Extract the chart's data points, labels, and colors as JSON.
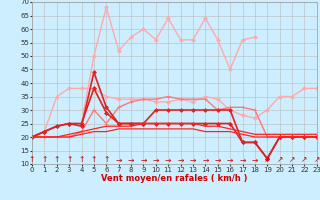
{
  "xlabel": "Vent moyen/en rafales ( km/h )",
  "bg_color": "#cceeff",
  "grid_color": "#bbbbbb",
  "x_ticks": [
    0,
    1,
    2,
    3,
    4,
    5,
    6,
    7,
    8,
    9,
    10,
    11,
    12,
    13,
    14,
    15,
    16,
    17,
    18,
    19,
    20,
    21,
    22,
    23
  ],
  "y_ticks": [
    10,
    15,
    20,
    25,
    30,
    35,
    40,
    45,
    50,
    55,
    60,
    65,
    70
  ],
  "ylim": [
    10,
    70
  ],
  "xlim": [
    0,
    23
  ],
  "series": [
    {
      "color": "#ffaaaa",
      "linewidth": 1.0,
      "marker": "D",
      "markersize": 2.0,
      "values": [
        20,
        22,
        35,
        38,
        38,
        38,
        35,
        34,
        34,
        34,
        33,
        33,
        34,
        33,
        35,
        34,
        30,
        28,
        27,
        30,
        35,
        35,
        38,
        38
      ]
    },
    {
      "color": "#ffaaaa",
      "linewidth": 1.0,
      "marker": "D",
      "markersize": 2.0,
      "values": [
        null,
        null,
        null,
        null,
        25,
        50,
        68,
        52,
        57,
        60,
        56,
        64,
        56,
        56,
        64,
        56,
        45,
        56,
        57,
        null,
        null,
        null,
        null,
        null
      ]
    },
    {
      "color": "#ff7777",
      "linewidth": 1.0,
      "marker": "+",
      "markersize": 3.0,
      "values": [
        20,
        20,
        20,
        20,
        22,
        30,
        25,
        31,
        33,
        34,
        34,
        35,
        34,
        34,
        34,
        30,
        31,
        31,
        30,
        20,
        20,
        20,
        20,
        20
      ]
    },
    {
      "color": "#dd2222",
      "linewidth": 1.2,
      "marker": "D",
      "markersize": 2.0,
      "values": [
        20,
        22,
        24,
        25,
        24,
        44,
        31,
        25,
        25,
        25,
        25,
        25,
        25,
        25,
        25,
        25,
        25,
        18,
        18,
        12,
        20,
        20,
        20,
        20
      ]
    },
    {
      "color": "#dd2222",
      "linewidth": 1.2,
      "marker": "D",
      "markersize": 2.0,
      "values": [
        20,
        22,
        24,
        25,
        25,
        38,
        29,
        25,
        25,
        25,
        30,
        30,
        30,
        30,
        30,
        30,
        30,
        18,
        18,
        12,
        20,
        20,
        20,
        20
      ]
    },
    {
      "color": "#ff2222",
      "linewidth": 0.9,
      "marker": null,
      "markersize": 0,
      "values": [
        20,
        20,
        20,
        21,
        22,
        23,
        24,
        24,
        24,
        25,
        25,
        25,
        25,
        25,
        24,
        24,
        23,
        22,
        21,
        21,
        21,
        21,
        21,
        21
      ]
    },
    {
      "color": "#ff2222",
      "linewidth": 0.9,
      "marker": null,
      "markersize": 0,
      "values": [
        20,
        20,
        20,
        20,
        21,
        22,
        22,
        23,
        23,
        23,
        23,
        23,
        23,
        23,
        22,
        22,
        22,
        21,
        20,
        20,
        20,
        20,
        20,
        20
      ]
    }
  ],
  "arrows": [
    "↑",
    "↑",
    "↑",
    "↑",
    "↑",
    "↑",
    "↑",
    "→",
    "→",
    "→",
    "→",
    "→",
    "→",
    "→",
    "→",
    "→",
    "→",
    "→",
    "→",
    "↗",
    "↗",
    "↗",
    "↗",
    "↗"
  ],
  "arrow_color": "#cc0000",
  "arrow_fontsize": 5.5,
  "xlabel_color": "#cc0000",
  "xlabel_fontsize": 6.0,
  "tick_fontsize": 5.0
}
